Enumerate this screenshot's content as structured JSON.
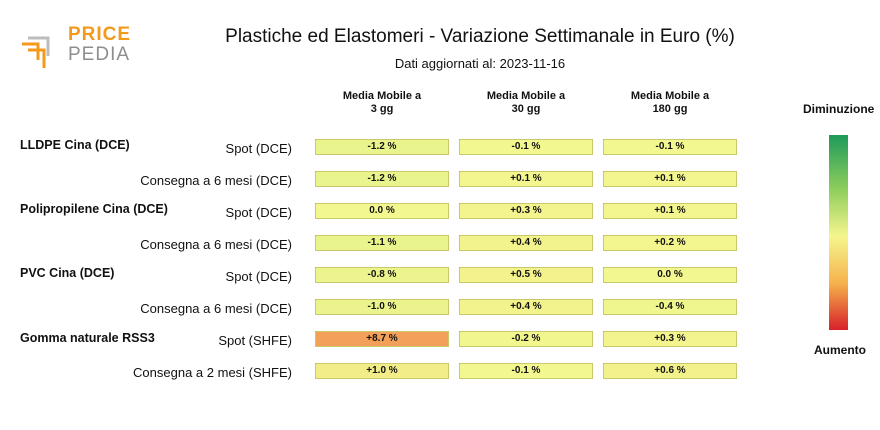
{
  "logo": {
    "word1": "PRICE",
    "word2": "PEDIA"
  },
  "title": "Plastiche ed Elastomeri - Variazione Settimanale in Euro (%)",
  "subtitle": "Dati aggiornati al: 2023-11-16",
  "chart_data": {
    "type": "table",
    "columns": [
      {
        "line1": "Media Mobile a",
        "line2": "3 gg"
      },
      {
        "line1": "Media Mobile a",
        "line2": "30 gg"
      },
      {
        "line1": "Media Mobile a",
        "line2": "180 gg"
      }
    ],
    "groups": [
      {
        "name": "LLDPE Cina (DCE)",
        "rows": [
          {
            "label": "Spot (DCE)",
            "values": [
              -1.2,
              -0.1,
              -0.1
            ],
            "display": [
              "-1.2 %",
              "-0.1 %",
              "-0.1 %"
            ]
          },
          {
            "label": "Consegna a 6 mesi (DCE)",
            "values": [
              -1.2,
              0.1,
              0.1
            ],
            "display": [
              "-1.2 %",
              "+0.1 %",
              "+0.1 %"
            ]
          }
        ]
      },
      {
        "name": "Polipropilene Cina (DCE)",
        "rows": [
          {
            "label": "Spot (DCE)",
            "values": [
              0.0,
              0.3,
              0.1
            ],
            "display": [
              "0.0 %",
              "+0.3 %",
              "+0.1 %"
            ]
          },
          {
            "label": "Consegna a 6 mesi (DCE)",
            "values": [
              -1.1,
              0.4,
              0.2
            ],
            "display": [
              "-1.1 %",
              "+0.4 %",
              "+0.2 %"
            ]
          }
        ]
      },
      {
        "name": "PVC Cina (DCE)",
        "rows": [
          {
            "label": "Spot (DCE)",
            "values": [
              -0.8,
              0.5,
              0.0
            ],
            "display": [
              "-0.8 %",
              "+0.5 %",
              "0.0 %"
            ]
          },
          {
            "label": "Consegna a 6 mesi (DCE)",
            "values": [
              -1.0,
              0.4,
              -0.4
            ],
            "display": [
              "-1.0 %",
              "+0.4 %",
              "-0.4 %"
            ]
          }
        ]
      },
      {
        "name": "Gomma naturale RSS3",
        "rows": [
          {
            "label": "Spot (SHFE)",
            "values": [
              8.7,
              -0.2,
              0.3
            ],
            "display": [
              "+8.7 %",
              "-0.2 %",
              "+0.3 %"
            ]
          },
          {
            "label": "Consegna a 2 mesi (SHFE)",
            "values": [
              1.0,
              -0.1,
              0.6
            ],
            "display": [
              "+1.0 %",
              "-0.1 %",
              "+0.6 %"
            ]
          }
        ]
      }
    ],
    "colors": {
      "decrease": "#1e9a5a",
      "neutral": "#f5f58e",
      "increase": "#d8202a"
    }
  },
  "legend": {
    "top_label": "Diminuzione",
    "bottom_label": "Aumento"
  }
}
